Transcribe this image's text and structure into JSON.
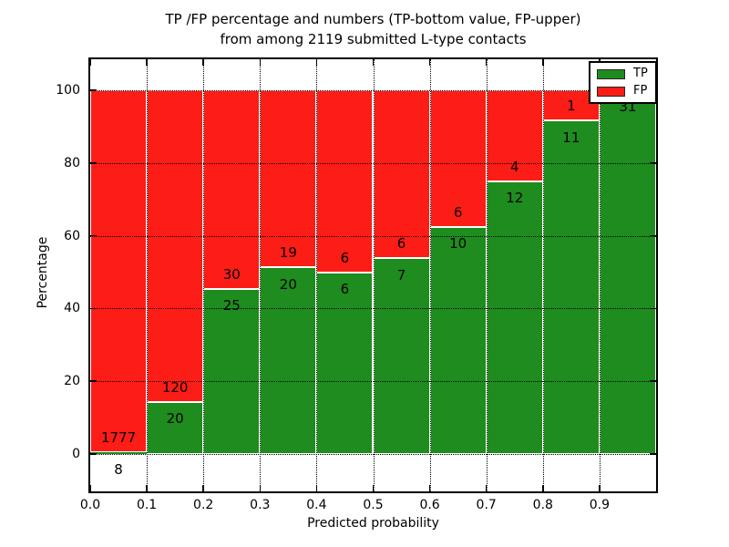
{
  "title": {
    "line1": "TP /FP percentage and numbers (TP-bottom value, FP-upper)",
    "line2": "from among 2119 submitted L-type contacts"
  },
  "axes": {
    "xlabel": "Predicted probability",
    "ylabel": "Percentage",
    "xtick_labels": [
      "0.0",
      "0.1",
      "0.2",
      "0.3",
      "0.4",
      "0.5",
      "0.6",
      "0.7",
      "0.8",
      "0.9"
    ],
    "ytick_values": [
      0,
      20,
      40,
      60,
      80,
      100
    ],
    "ytick_labels": [
      "0",
      "20",
      "40",
      "60",
      "80",
      "100"
    ]
  },
  "legend": {
    "entries": [
      {
        "label": "TP",
        "color": "#1e8c1e"
      },
      {
        "label": "FP",
        "color": "#fc1d16"
      }
    ]
  },
  "chart_data": {
    "type": "bar",
    "stacked": true,
    "normalized_to_percent": true,
    "title": "TP /FP percentage and numbers (TP-bottom value, FP-upper) from among 2119 submitted L-type contacts",
    "xlabel": "Predicted probability",
    "ylabel": "Percentage",
    "total_contacts": 2119,
    "bin_edges": [
      0.0,
      0.1,
      0.2,
      0.3,
      0.4,
      0.5,
      0.6,
      0.7,
      0.8,
      0.9,
      1.0
    ],
    "series": [
      {
        "name": "TP",
        "color": "#1e8c1e",
        "values": [
          8,
          20,
          25,
          20,
          6,
          7,
          10,
          12,
          11,
          31
        ]
      },
      {
        "name": "FP",
        "color": "#fc1d16",
        "values": [
          1777,
          120,
          30,
          19,
          6,
          6,
          6,
          4,
          1,
          0
        ]
      }
    ],
    "tp_percent_of_bin": [
      0.45,
      14.29,
      45.45,
      51.28,
      50.0,
      53.85,
      62.5,
      75.0,
      91.67,
      100.0
    ],
    "xlim": [
      0.0,
      1.0
    ],
    "ylim": [
      -10.3,
      108.5
    ],
    "grid": "dotted",
    "legend_position": "upper right"
  }
}
